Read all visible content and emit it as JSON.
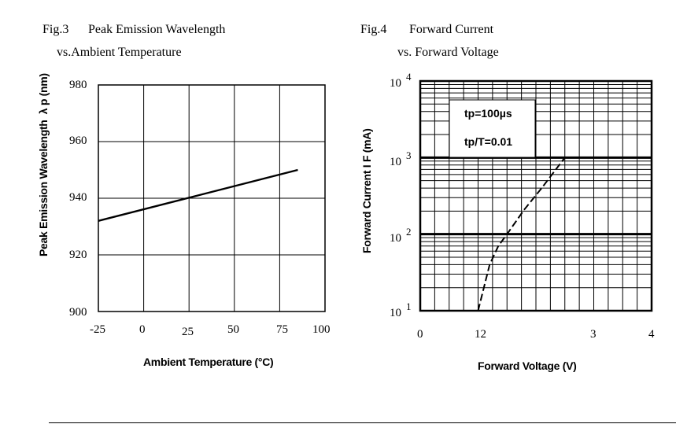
{
  "fig3": {
    "caption_num": "Fig.3",
    "caption_title": "Peak Emission Wavelength",
    "caption_sub": "vs.Ambient Temperature"
  },
  "fig4": {
    "caption_num": "Fig.4",
    "caption_title": "Forward Current",
    "caption_sub": "vs. Forward Voltage",
    "annotation_line1": "tp=100µs",
    "annotation_line2": "tp/T=0.01"
  },
  "chart_data": [
    {
      "type": "line",
      "title": "",
      "xlabel": "Ambient Temperature (°C)",
      "ylabel": "Peak Emission Wavelength  λ p (nm)",
      "xticks": [
        "-25",
        "0",
        "25",
        "50",
        "75",
        "100"
      ],
      "yticks": [
        "980",
        "960",
        "940",
        "920",
        "900"
      ],
      "xlim": [
        -25,
        100
      ],
      "ylim": [
        900,
        980
      ],
      "grid": true,
      "series": [
        {
          "x": [
            -25,
            85
          ],
          "y": [
            932,
            950
          ]
        }
      ]
    },
    {
      "type": "line",
      "title": "",
      "xlabel": "Forward Voltage (V)",
      "ylabel": "Forward Current I F (mA)",
      "xticks": [
        "0",
        "12",
        "3",
        "4"
      ],
      "yticks": [
        "10",
        "10",
        "10",
        "10"
      ],
      "ytick_exponents": [
        "4",
        "3",
        "2",
        "1"
      ],
      "xlim": [
        0,
        4
      ],
      "ylim": [
        10,
        10000
      ],
      "yscale": "log",
      "grid": true,
      "series": [
        {
          "style": "dashed",
          "x": [
            1.0,
            1.1,
            1.2,
            1.35,
            1.5,
            1.8,
            2.1,
            2.5
          ],
          "y": [
            10,
            20,
            40,
            70,
            100,
            210,
            400,
            1000
          ]
        }
      ]
    }
  ]
}
